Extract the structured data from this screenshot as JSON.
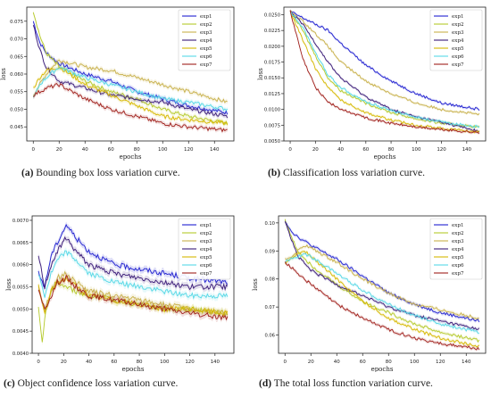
{
  "colors": {
    "exp1": "#1f1fd0",
    "exp2": "#b5c92a",
    "exp3": "#c8b04a",
    "exp4": "#3a1a78",
    "exp5": "#d6b800",
    "exp6": "#55d8e6",
    "exp7": "#a0201c"
  },
  "chart_data": [
    {
      "type": "line",
      "title": "",
      "xlabel": "epochs",
      "ylabel": "loss",
      "xlim": [
        -5,
        155
      ],
      "ylim": [
        0.041,
        0.079
      ],
      "xticks": [
        0,
        20,
        40,
        60,
        80,
        100,
        120,
        140
      ],
      "yticks": [
        0.045,
        0.05,
        0.055,
        0.06,
        0.065,
        0.07,
        0.075
      ],
      "ytick_labels": [
        "0.045",
        "0.050",
        "0.055",
        "0.060",
        "0.065",
        "0.070",
        "0.075"
      ],
      "legend": "top-right",
      "noise": 0.0011,
      "series": [
        {
          "name": "exp1",
          "x": [
            0,
            5,
            10,
            20,
            40,
            60,
            80,
            100,
            120,
            150
          ],
          "values": [
            0.075,
            0.069,
            0.066,
            0.063,
            0.06,
            0.058,
            0.055,
            0.053,
            0.051,
            0.049
          ]
        },
        {
          "name": "exp2",
          "x": [
            0,
            5,
            10,
            20,
            40,
            60,
            80,
            100,
            120,
            150
          ],
          "values": [
            0.078,
            0.071,
            0.066,
            0.062,
            0.058,
            0.055,
            0.053,
            0.05,
            0.048,
            0.046
          ]
        },
        {
          "name": "exp3",
          "x": [
            0,
            5,
            10,
            20,
            40,
            60,
            80,
            100,
            120,
            150
          ],
          "values": [
            0.054,
            0.057,
            0.06,
            0.064,
            0.062,
            0.061,
            0.059,
            0.057,
            0.055,
            0.052
          ]
        },
        {
          "name": "exp4",
          "x": [
            0,
            5,
            10,
            20,
            40,
            60,
            80,
            100,
            120,
            150
          ],
          "values": [
            0.074,
            0.067,
            0.062,
            0.058,
            0.056,
            0.054,
            0.053,
            0.052,
            0.05,
            0.048
          ]
        },
        {
          "name": "exp5",
          "x": [
            0,
            5,
            10,
            20,
            40,
            60,
            80,
            100,
            120,
            150
          ],
          "values": [
            0.056,
            0.059,
            0.061,
            0.062,
            0.057,
            0.054,
            0.051,
            0.048,
            0.047,
            0.046
          ]
        },
        {
          "name": "exp6",
          "x": [
            0,
            5,
            10,
            20,
            40,
            60,
            80,
            100,
            120,
            150
          ],
          "values": [
            0.053,
            0.057,
            0.059,
            0.062,
            0.059,
            0.057,
            0.055,
            0.053,
            0.052,
            0.05
          ]
        },
        {
          "name": "exp7",
          "x": [
            0,
            5,
            10,
            20,
            40,
            60,
            80,
            100,
            120,
            150
          ],
          "values": [
            0.054,
            0.055,
            0.056,
            0.057,
            0.053,
            0.05,
            0.048,
            0.046,
            0.045,
            0.044
          ]
        }
      ]
    },
    {
      "type": "line",
      "title": "",
      "xlabel": "epochs",
      "ylabel": "loss",
      "xlim": [
        -5,
        155
      ],
      "ylim": [
        0.005,
        0.0262
      ],
      "xticks": [
        0,
        20,
        40,
        60,
        80,
        100,
        120,
        140
      ],
      "yticks": [
        0.005,
        0.0075,
        0.01,
        0.0125,
        0.015,
        0.0175,
        0.02,
        0.0225,
        0.025
      ],
      "ytick_labels": [
        "0.0050",
        "0.0075",
        "0.0100",
        "0.0125",
        "0.0150",
        "0.0175",
        "0.0200",
        "0.0225",
        "0.0250"
      ],
      "legend": "top-right",
      "noise": 0.0004,
      "series": [
        {
          "name": "exp1",
          "x": [
            0,
            10,
            20,
            30,
            40,
            60,
            80,
            100,
            120,
            150
          ],
          "values": [
            0.0255,
            0.0245,
            0.0235,
            0.0225,
            0.0205,
            0.017,
            0.0145,
            0.0125,
            0.011,
            0.01
          ]
        },
        {
          "name": "exp2",
          "x": [
            0,
            10,
            20,
            30,
            40,
            60,
            80,
            100,
            120,
            150
          ],
          "values": [
            0.0255,
            0.0225,
            0.0185,
            0.015,
            0.013,
            0.011,
            0.0095,
            0.0085,
            0.0078,
            0.0072
          ]
        },
        {
          "name": "exp3",
          "x": [
            0,
            10,
            20,
            30,
            40,
            60,
            80,
            100,
            120,
            150
          ],
          "values": [
            0.0255,
            0.024,
            0.022,
            0.02,
            0.0175,
            0.0145,
            0.0125,
            0.011,
            0.01,
            0.0092
          ]
        },
        {
          "name": "exp4",
          "x": [
            0,
            10,
            20,
            30,
            40,
            60,
            80,
            100,
            120,
            150
          ],
          "values": [
            0.0255,
            0.0235,
            0.0205,
            0.0175,
            0.015,
            0.012,
            0.01,
            0.0088,
            0.008,
            0.0065
          ]
        },
        {
          "name": "exp5",
          "x": [
            0,
            10,
            20,
            30,
            40,
            60,
            80,
            100,
            120,
            150
          ],
          "values": [
            0.0255,
            0.021,
            0.0165,
            0.0135,
            0.0115,
            0.0095,
            0.0083,
            0.0075,
            0.007,
            0.0064
          ]
        },
        {
          "name": "exp6",
          "x": [
            0,
            10,
            20,
            30,
            40,
            60,
            80,
            100,
            120,
            150
          ],
          "values": [
            0.0255,
            0.023,
            0.019,
            0.0155,
            0.0135,
            0.0112,
            0.0098,
            0.0088,
            0.008,
            0.0072
          ]
        },
        {
          "name": "exp7",
          "x": [
            0,
            10,
            20,
            30,
            40,
            60,
            80,
            100,
            120,
            150
          ],
          "values": [
            0.0255,
            0.018,
            0.0135,
            0.0112,
            0.01,
            0.0087,
            0.0078,
            0.0072,
            0.0068,
            0.0063
          ]
        }
      ]
    },
    {
      "type": "line",
      "title": "",
      "xlabel": "epochs",
      "ylabel": "loss",
      "xlim": [
        -5,
        155
      ],
      "ylim": [
        0.004,
        0.0071
      ],
      "xticks": [
        0,
        20,
        40,
        60,
        80,
        100,
        120,
        140
      ],
      "yticks": [
        0.004,
        0.0045,
        0.005,
        0.0055,
        0.006,
        0.0065,
        0.007
      ],
      "ytick_labels": [
        "0.0040",
        "0.0045",
        "0.0050",
        "0.0055",
        "0.0060",
        "0.0065",
        "0.0070"
      ],
      "legend": "top-right",
      "noise": 0.00012,
      "series": [
        {
          "name": "exp1",
          "x": [
            0,
            5,
            10,
            15,
            22,
            30,
            40,
            60,
            80,
            100,
            120,
            150
          ],
          "values": [
            0.0058,
            0.0055,
            0.0062,
            0.0065,
            0.0069,
            0.0066,
            0.0063,
            0.006,
            0.0059,
            0.0058,
            0.0057,
            0.0056
          ]
        },
        {
          "name": "exp2",
          "x": [
            0,
            3,
            6,
            10,
            15,
            22,
            30,
            40,
            60,
            80,
            100,
            120,
            150
          ],
          "values": [
            0.005,
            0.0042,
            0.005,
            0.0054,
            0.0056,
            0.0055,
            0.0054,
            0.0053,
            0.0052,
            0.0051,
            0.005,
            0.005,
            0.0049
          ]
        },
        {
          "name": "exp3",
          "x": [
            0,
            5,
            10,
            15,
            22,
            30,
            40,
            60,
            80,
            100,
            120,
            150
          ],
          "values": [
            0.0055,
            0.005,
            0.0054,
            0.0057,
            0.0058,
            0.0056,
            0.0054,
            0.0053,
            0.0052,
            0.0051,
            0.005,
            0.0049
          ]
        },
        {
          "name": "exp4",
          "x": [
            0,
            5,
            10,
            15,
            22,
            30,
            40,
            60,
            80,
            100,
            120,
            150
          ],
          "values": [
            0.0062,
            0.0055,
            0.006,
            0.0063,
            0.0066,
            0.0063,
            0.006,
            0.0058,
            0.0057,
            0.0056,
            0.0055,
            0.0055
          ]
        },
        {
          "name": "exp5",
          "x": [
            0,
            5,
            10,
            15,
            22,
            30,
            40,
            60,
            80,
            100,
            120,
            150
          ],
          "values": [
            0.0055,
            0.0049,
            0.0054,
            0.0056,
            0.0057,
            0.0055,
            0.0053,
            0.0052,
            0.0051,
            0.005,
            0.005,
            0.0049
          ]
        },
        {
          "name": "exp6",
          "x": [
            0,
            5,
            10,
            15,
            22,
            30,
            40,
            60,
            80,
            100,
            120,
            150
          ],
          "values": [
            0.0058,
            0.0053,
            0.0058,
            0.0061,
            0.0063,
            0.0061,
            0.0058,
            0.0056,
            0.0055,
            0.0054,
            0.0053,
            0.0053
          ]
        },
        {
          "name": "exp7",
          "x": [
            0,
            5,
            10,
            15,
            22,
            30,
            40,
            60,
            80,
            100,
            120,
            150
          ],
          "values": [
            0.0054,
            0.005,
            0.0053,
            0.0056,
            0.0057,
            0.0055,
            0.0053,
            0.0052,
            0.0051,
            0.005,
            0.0049,
            0.0048
          ]
        }
      ]
    },
    {
      "type": "line",
      "title": "",
      "xlabel": "epochs",
      "ylabel": "loss",
      "xlim": [
        -5,
        155
      ],
      "ylim": [
        0.0535,
        0.1025
      ],
      "xticks": [
        0,
        20,
        40,
        60,
        80,
        100,
        120,
        140
      ],
      "yticks": [
        0.06,
        0.07,
        0.08,
        0.09,
        0.1
      ],
      "ytick_labels": [
        "0.06",
        "0.07",
        "0.08",
        "0.09",
        "0.10"
      ],
      "legend": "top-right",
      "noise": 0.0011,
      "series": [
        {
          "name": "exp1",
          "x": [
            0,
            5,
            10,
            20,
            40,
            60,
            80,
            100,
            120,
            150
          ],
          "values": [
            0.101,
            0.097,
            0.095,
            0.092,
            0.087,
            0.081,
            0.075,
            0.071,
            0.068,
            0.065
          ]
        },
        {
          "name": "exp2",
          "x": [
            0,
            5,
            10,
            20,
            40,
            60,
            80,
            100,
            120,
            150
          ],
          "values": [
            0.101,
            0.095,
            0.09,
            0.085,
            0.078,
            0.072,
            0.068,
            0.064,
            0.061,
            0.058
          ]
        },
        {
          "name": "exp3",
          "x": [
            0,
            5,
            10,
            15,
            20,
            40,
            60,
            80,
            100,
            120,
            150
          ],
          "values": [
            0.087,
            0.088,
            0.09,
            0.092,
            0.091,
            0.086,
            0.08,
            0.075,
            0.071,
            0.069,
            0.066
          ]
        },
        {
          "name": "exp4",
          "x": [
            0,
            5,
            10,
            20,
            40,
            60,
            80,
            100,
            120,
            150
          ],
          "values": [
            0.101,
            0.094,
            0.088,
            0.083,
            0.078,
            0.074,
            0.07,
            0.067,
            0.065,
            0.062
          ]
        },
        {
          "name": "exp5",
          "x": [
            0,
            5,
            10,
            15,
            20,
            40,
            60,
            80,
            100,
            120,
            150
          ],
          "values": [
            0.086,
            0.087,
            0.089,
            0.09,
            0.088,
            0.08,
            0.072,
            0.066,
            0.062,
            0.059,
            0.056
          ]
        },
        {
          "name": "exp6",
          "x": [
            0,
            5,
            10,
            15,
            20,
            40,
            60,
            80,
            100,
            120,
            150
          ],
          "values": [
            0.086,
            0.087,
            0.088,
            0.089,
            0.088,
            0.082,
            0.076,
            0.071,
            0.067,
            0.064,
            0.061
          ]
        },
        {
          "name": "exp7",
          "x": [
            0,
            5,
            10,
            20,
            40,
            60,
            80,
            100,
            120,
            150
          ],
          "values": [
            0.086,
            0.084,
            0.082,
            0.078,
            0.071,
            0.066,
            0.062,
            0.059,
            0.057,
            0.055
          ]
        }
      ]
    }
  ],
  "captions": [
    {
      "label": "(a)",
      "text": " Bounding box loss variation curve."
    },
    {
      "label": "(b)",
      "text": " Classification loss variation curve."
    },
    {
      "label": "(c)",
      "text": " Object confidence loss variation curve."
    },
    {
      "label": "(d)",
      "text": " The total loss function variation curve."
    }
  ]
}
